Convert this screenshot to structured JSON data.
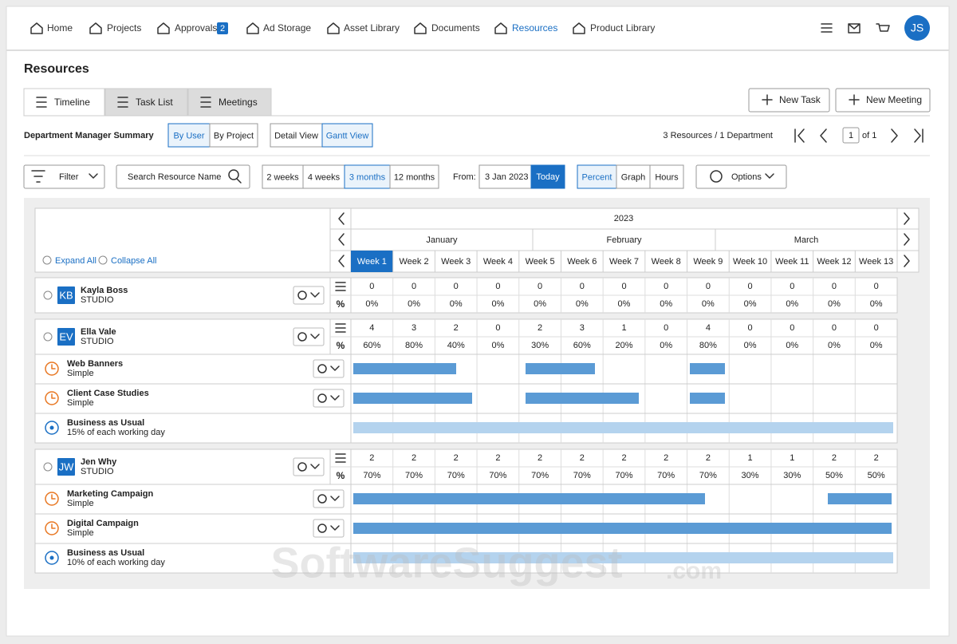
{
  "nav": {
    "items": [
      "Home",
      "Projects",
      "Approvals",
      "Ad Storage",
      "Asset Library",
      "Documents",
      "Resources",
      "Product Library"
    ],
    "approvals_badge": "2",
    "avatar": "JS"
  },
  "page_title": "Resources",
  "tabs": [
    "Timeline",
    "Task List",
    "Meetings"
  ],
  "actions": [
    "New Task",
    "New Meeting"
  ],
  "summary": {
    "label": "Department Manager Summary",
    "group_by": [
      "By User",
      "By Project"
    ],
    "view": [
      "Detail View",
      "Gantt View"
    ],
    "count": "3 Resources / 1 Department",
    "page": "1",
    "of": "of 1"
  },
  "toolbar": {
    "filter": "Filter",
    "search": "Search Resource Name",
    "ranges": [
      "2 weeks",
      "4 weeks",
      "3 months",
      "12 months"
    ],
    "from": "From:",
    "date": "3 Jan 2023",
    "today": "Today",
    "modes": [
      "Percent",
      "Graph",
      "Hours"
    ],
    "options": "Options"
  },
  "grid": {
    "expand": "Expand All",
    "collapse": "Collapse All",
    "year": "2023",
    "months": [
      "January",
      "February",
      "March"
    ],
    "weeks": [
      "Week 1",
      "Week 2",
      "Week 3",
      "Week 4",
      "Week 5",
      "Week 6",
      "Week 7",
      "Week 8",
      "Week 9",
      "Week 10",
      "Week 11",
      "Week 12",
      "Week 13"
    ]
  },
  "people": [
    {
      "initials": "KB",
      "name": "Kayla Boss",
      "group": "STUDIO",
      "counts": [
        0,
        0,
        0,
        0,
        0,
        0,
        0,
        0,
        0,
        0,
        0,
        0,
        0
      ],
      "percents": [
        "0%",
        "0%",
        "0%",
        "0%",
        "0%",
        "0%",
        "0%",
        "0%",
        "0%",
        "0%",
        "0%",
        "0%",
        "0%"
      ],
      "tasks": []
    },
    {
      "initials": "EV",
      "name": "Ella Vale",
      "group": "STUDIO",
      "counts": [
        4,
        3,
        2,
        0,
        2,
        3,
        1,
        0,
        4,
        0,
        0,
        0,
        0
      ],
      "percents": [
        "60%",
        "80%",
        "40%",
        "0%",
        "30%",
        "60%",
        "20%",
        "0%",
        "80%",
        "0%",
        "0%",
        "0%",
        "0%"
      ],
      "tasks": [
        {
          "name": "Web Banners",
          "type": "Simple"
        },
        {
          "name": "Client Case Studies",
          "type": "Simple"
        },
        {
          "name": "Business as Usual",
          "type": "15% of each working day"
        }
      ]
    },
    {
      "initials": "JW",
      "name": "Jen Why",
      "group": "STUDIO",
      "counts": [
        2,
        2,
        2,
        2,
        2,
        2,
        2,
        2,
        2,
        1,
        1,
        2,
        2
      ],
      "percents": [
        "70%",
        "70%",
        "70%",
        "70%",
        "70%",
        "70%",
        "70%",
        "70%",
        "70%",
        "30%",
        "30%",
        "50%",
        "50%"
      ],
      "tasks": [
        {
          "name": "Marketing Campaign",
          "type": "Simple"
        },
        {
          "name": "Digital Campaign",
          "type": "Simple"
        },
        {
          "name": "Business as Usual",
          "type": "10% of each working day"
        }
      ]
    }
  ],
  "watermark": [
    "SoftwareSuggest",
    ".com"
  ]
}
